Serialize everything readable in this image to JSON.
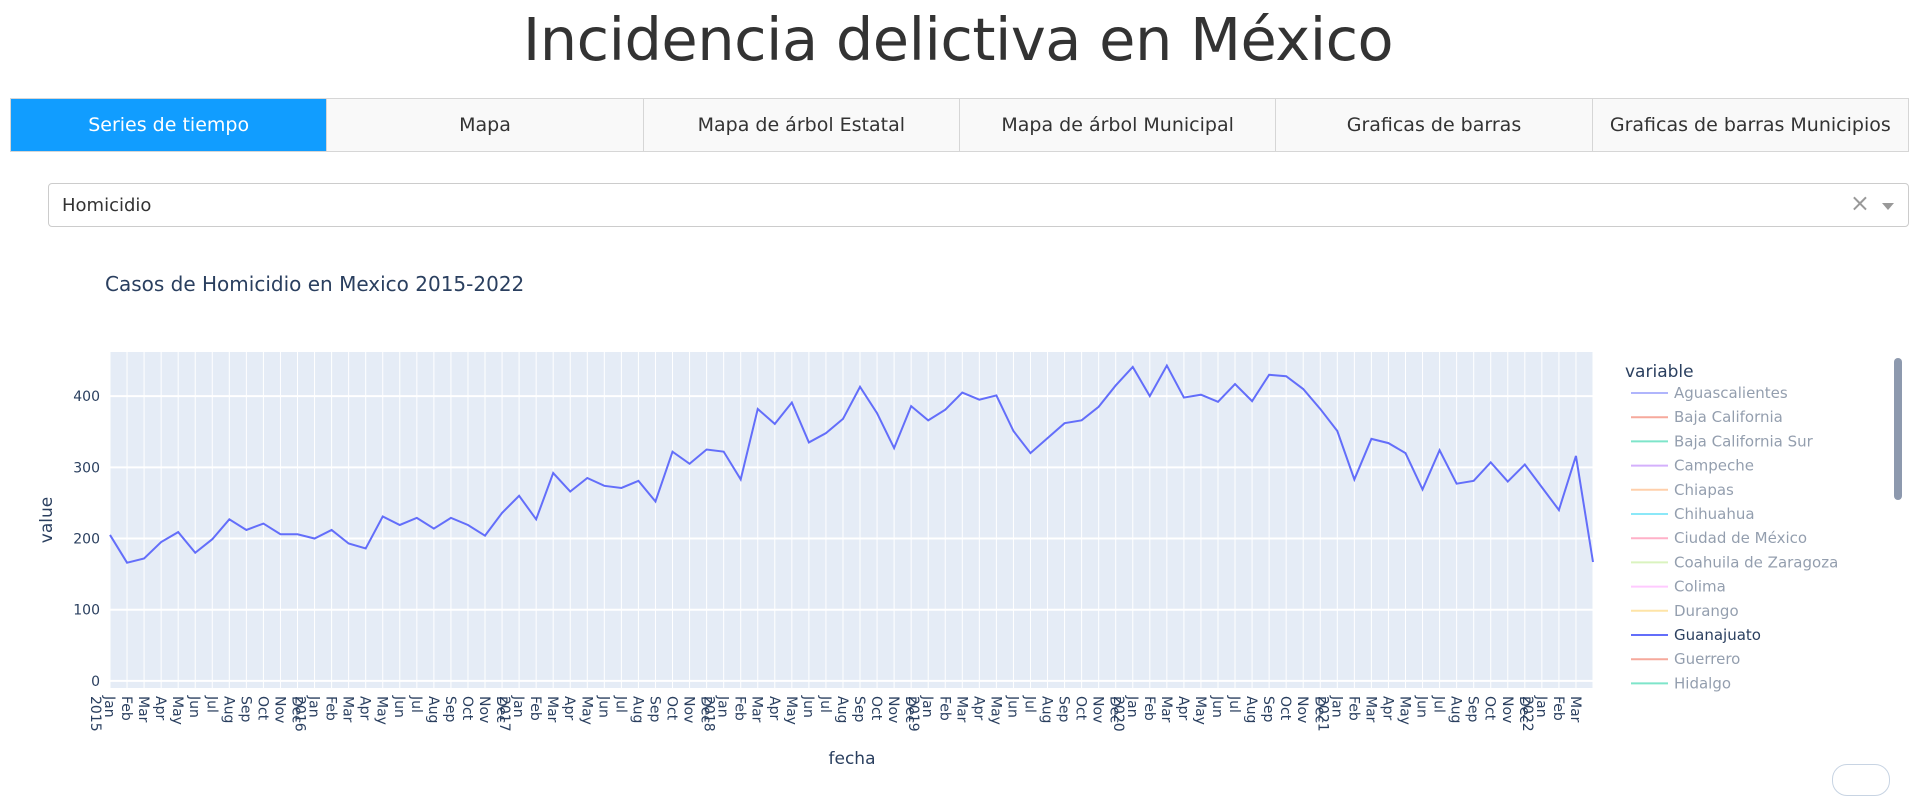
{
  "header": {
    "title": "Incidencia delictiva en México"
  },
  "tabs": [
    {
      "label": "Series de tiempo",
      "active": true
    },
    {
      "label": "Mapa",
      "active": false
    },
    {
      "label": "Mapa de árbol Estatal",
      "active": false
    },
    {
      "label": "Mapa de árbol Municipal",
      "active": false
    },
    {
      "label": "Graficas de barras",
      "active": false
    },
    {
      "label": "Graficas de barras Municipios",
      "active": false
    }
  ],
  "filter": {
    "value": "Homicidio",
    "clear_symbol": "×"
  },
  "colors": {
    "active_tab": "#119dff",
    "plot_bg": "#e5ecf6",
    "line": "#636efa",
    "text": "#2a3f5f"
  },
  "chart_data": {
    "type": "line",
    "title": "Casos de Homicidio en Mexico 2015-2022",
    "xlabel": "fecha",
    "ylabel": "value",
    "ylim": [
      -10,
      462
    ],
    "yticks": [
      0,
      100,
      200,
      300,
      400
    ],
    "grid": true,
    "legend_placement": "right",
    "x": [
      "2015-01",
      "2015-02",
      "2015-03",
      "2015-04",
      "2015-05",
      "2015-06",
      "2015-07",
      "2015-08",
      "2015-09",
      "2015-10",
      "2015-11",
      "2015-12",
      "2016-01",
      "2016-02",
      "2016-03",
      "2016-04",
      "2016-05",
      "2016-06",
      "2016-07",
      "2016-08",
      "2016-09",
      "2016-10",
      "2016-11",
      "2016-12",
      "2017-01",
      "2017-02",
      "2017-03",
      "2017-04",
      "2017-05",
      "2017-06",
      "2017-07",
      "2017-08",
      "2017-09",
      "2017-10",
      "2017-11",
      "2017-12",
      "2018-01",
      "2018-02",
      "2018-03",
      "2018-04",
      "2018-05",
      "2018-06",
      "2018-07",
      "2018-08",
      "2018-09",
      "2018-10",
      "2018-11",
      "2018-12",
      "2019-01",
      "2019-02",
      "2019-03",
      "2019-04",
      "2019-05",
      "2019-06",
      "2019-07",
      "2019-08",
      "2019-09",
      "2019-10",
      "2019-11",
      "2019-12",
      "2020-01",
      "2020-02",
      "2020-03",
      "2020-04",
      "2020-05",
      "2020-06",
      "2020-07",
      "2020-08",
      "2020-09",
      "2020-10",
      "2020-11",
      "2020-12",
      "2021-01",
      "2021-02",
      "2021-03",
      "2021-04",
      "2021-05",
      "2021-06",
      "2021-07",
      "2021-08",
      "2021-09",
      "2021-10",
      "2021-11",
      "2021-12",
      "2022-01",
      "2022-02",
      "2022-03",
      "2022-04"
    ],
    "x_tick_labels": [
      {
        "x": "2015-01",
        "text": "Jan\n2015"
      },
      {
        "x": "2015-02",
        "text": "Feb"
      },
      {
        "x": "2015-03",
        "text": "Mar"
      },
      {
        "x": "2015-04",
        "text": "Apr"
      },
      {
        "x": "2015-05",
        "text": "May"
      },
      {
        "x": "2015-06",
        "text": "Jun"
      },
      {
        "x": "2015-07",
        "text": "Jul"
      },
      {
        "x": "2015-08",
        "text": "Aug"
      },
      {
        "x": "2015-09",
        "text": "Sep"
      },
      {
        "x": "2015-10",
        "text": "Oct"
      },
      {
        "x": "2015-11",
        "text": "Nov"
      },
      {
        "x": "2015-12",
        "text": "Dec"
      },
      {
        "x": "2016-01",
        "text": "Jan\n2016"
      },
      {
        "x": "2016-02",
        "text": "Feb"
      },
      {
        "x": "2016-03",
        "text": "Mar"
      },
      {
        "x": "2016-04",
        "text": "Apr"
      },
      {
        "x": "2016-05",
        "text": "May"
      },
      {
        "x": "2016-06",
        "text": "Jun"
      },
      {
        "x": "2016-07",
        "text": "Jul"
      },
      {
        "x": "2016-08",
        "text": "Aug"
      },
      {
        "x": "2016-09",
        "text": "Sep"
      },
      {
        "x": "2016-10",
        "text": "Oct"
      },
      {
        "x": "2016-11",
        "text": "Nov"
      },
      {
        "x": "2016-12",
        "text": "Dec"
      },
      {
        "x": "2017-01",
        "text": "Jan\n2017"
      },
      {
        "x": "2017-02",
        "text": "Feb"
      },
      {
        "x": "2017-03",
        "text": "Mar"
      },
      {
        "x": "2017-04",
        "text": "Apr"
      },
      {
        "x": "2017-05",
        "text": "May"
      },
      {
        "x": "2017-06",
        "text": "Jun"
      },
      {
        "x": "2017-07",
        "text": "Jul"
      },
      {
        "x": "2017-08",
        "text": "Aug"
      },
      {
        "x": "2017-09",
        "text": "Sep"
      },
      {
        "x": "2017-10",
        "text": "Oct"
      },
      {
        "x": "2017-11",
        "text": "Nov"
      },
      {
        "x": "2017-12",
        "text": "Dec"
      },
      {
        "x": "2018-01",
        "text": "Jan\n2018"
      },
      {
        "x": "2018-02",
        "text": "Feb"
      },
      {
        "x": "2018-03",
        "text": "Mar"
      },
      {
        "x": "2018-04",
        "text": "Apr"
      },
      {
        "x": "2018-05",
        "text": "May"
      },
      {
        "x": "2018-06",
        "text": "Jun"
      },
      {
        "x": "2018-07",
        "text": "Jul"
      },
      {
        "x": "2018-08",
        "text": "Aug"
      },
      {
        "x": "2018-09",
        "text": "Sep"
      },
      {
        "x": "2018-10",
        "text": "Oct"
      },
      {
        "x": "2018-11",
        "text": "Nov"
      },
      {
        "x": "2018-12",
        "text": "Dec"
      },
      {
        "x": "2019-01",
        "text": "Jan\n2019"
      },
      {
        "x": "2019-02",
        "text": "Feb"
      },
      {
        "x": "2019-03",
        "text": "Mar"
      },
      {
        "x": "2019-04",
        "text": "Apr"
      },
      {
        "x": "2019-05",
        "text": "May"
      },
      {
        "x": "2019-06",
        "text": "Jun"
      },
      {
        "x": "2019-07",
        "text": "Jul"
      },
      {
        "x": "2019-08",
        "text": "Aug"
      },
      {
        "x": "2019-09",
        "text": "Sep"
      },
      {
        "x": "2019-10",
        "text": "Oct"
      },
      {
        "x": "2019-11",
        "text": "Nov"
      },
      {
        "x": "2019-12",
        "text": "Dec"
      },
      {
        "x": "2020-01",
        "text": "Jan\n2020"
      },
      {
        "x": "2020-02",
        "text": "Feb"
      },
      {
        "x": "2020-03",
        "text": "Mar"
      },
      {
        "x": "2020-04",
        "text": "Apr"
      },
      {
        "x": "2020-05",
        "text": "May"
      },
      {
        "x": "2020-06",
        "text": "Jun"
      },
      {
        "x": "2020-07",
        "text": "Jul"
      },
      {
        "x": "2020-08",
        "text": "Aug"
      },
      {
        "x": "2020-09",
        "text": "Sep"
      },
      {
        "x": "2020-10",
        "text": "Oct"
      },
      {
        "x": "2020-11",
        "text": "Nov"
      },
      {
        "x": "2020-12",
        "text": "Dec"
      },
      {
        "x": "2021-01",
        "text": "Jan\n2021"
      },
      {
        "x": "2021-02",
        "text": "Feb"
      },
      {
        "x": "2021-03",
        "text": "Mar"
      },
      {
        "x": "2021-04",
        "text": "Apr"
      },
      {
        "x": "2021-05",
        "text": "May"
      },
      {
        "x": "2021-06",
        "text": "Jun"
      },
      {
        "x": "2021-07",
        "text": "Jul"
      },
      {
        "x": "2021-08",
        "text": "Aug"
      },
      {
        "x": "2021-09",
        "text": "Sep"
      },
      {
        "x": "2021-10",
        "text": "Oct"
      },
      {
        "x": "2021-11",
        "text": "Nov"
      },
      {
        "x": "2021-12",
        "text": "Dec"
      },
      {
        "x": "2022-01",
        "text": "Jan\n2022"
      },
      {
        "x": "2022-02",
        "text": "Feb"
      },
      {
        "x": "2022-03",
        "text": "Mar"
      }
    ],
    "series": [
      {
        "name": "Guanajuato",
        "color": "#636efa",
        "values": [
          205,
          166,
          172,
          195,
          209,
          180,
          199,
          227,
          212,
          221,
          206,
          206,
          200,
          212,
          193,
          186,
          231,
          219,
          229,
          214,
          229,
          219,
          204,
          236,
          260,
          227,
          292,
          266,
          285,
          274,
          271,
          281,
          252,
          322,
          305,
          325,
          322,
          283,
          382,
          361,
          391,
          335,
          348,
          368,
          413,
          376,
          327,
          386,
          366,
          381,
          405,
          395,
          401,
          351,
          320,
          341,
          362,
          366,
          385,
          415,
          441,
          400,
          443,
          398,
          402,
          392,
          417,
          393,
          430,
          428,
          410,
          382,
          351,
          283,
          340,
          334,
          320,
          269,
          324,
          277,
          281,
          307,
          280,
          304,
          272,
          240,
          316,
          167
        ]
      }
    ],
    "legend": {
      "title": "variable",
      "items": [
        {
          "name": "Aguascalientes",
          "color": "#636efa",
          "visible": false
        },
        {
          "name": "Baja California",
          "color": "#ef553b",
          "visible": false
        },
        {
          "name": "Baja California Sur",
          "color": "#00cc96",
          "visible": false
        },
        {
          "name": "Campeche",
          "color": "#ab63fa",
          "visible": false
        },
        {
          "name": "Chiapas",
          "color": "#ffa15a",
          "visible": false
        },
        {
          "name": "Chihuahua",
          "color": "#19d3f3",
          "visible": false
        },
        {
          "name": "Ciudad de México",
          "color": "#ff6692",
          "visible": false
        },
        {
          "name": "Coahuila de Zaragoza",
          "color": "#b6e880",
          "visible": false
        },
        {
          "name": "Colima",
          "color": "#ff97ff",
          "visible": false
        },
        {
          "name": "Durango",
          "color": "#fecb52",
          "visible": false
        },
        {
          "name": "Guanajuato",
          "color": "#636efa",
          "visible": true
        },
        {
          "name": "Guerrero",
          "color": "#ef553b",
          "visible": false
        },
        {
          "name": "Hidalgo",
          "color": "#00cc96",
          "visible": false
        }
      ]
    }
  }
}
